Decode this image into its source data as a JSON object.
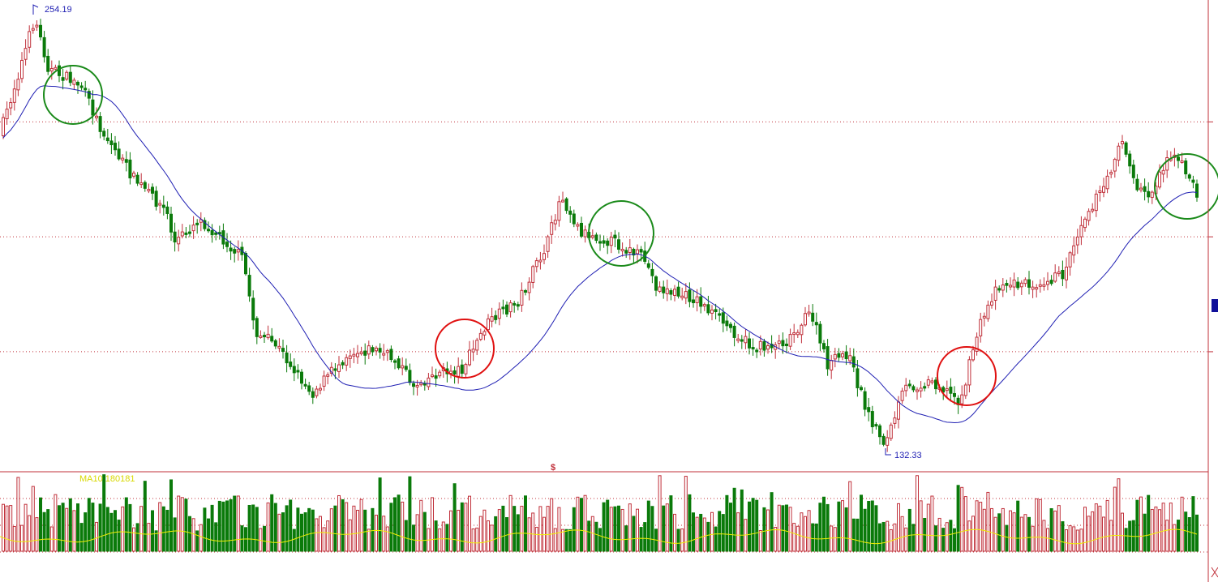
{
  "chart_data": {
    "type": "candlestick",
    "price_panel": {
      "high_marker": "254.19",
      "low_marker": "132.33",
      "ylim": [
        127,
        262
      ],
      "gridlines": [
        227,
        194,
        161
      ],
      "moving_average_color": "#1f1fb3",
      "up_color": "#c0303a",
      "down_color": "#0a7a0a"
    },
    "volume_panel": {
      "indicator_label": "MA10  180181",
      "ma_color": "#f0f000",
      "up_color": "#c0303a",
      "down_color": "#0a7a0a"
    },
    "divider_marker": "$",
    "annotations": [
      {
        "kind": "sell-circle",
        "color": "#1a8a1a"
      },
      {
        "kind": "buy-circle",
        "color": "#e01010"
      },
      {
        "kind": "sell-circle",
        "color": "#1a8a1a"
      },
      {
        "kind": "buy-circle",
        "color": "#e01010"
      },
      {
        "kind": "sell-circle",
        "color": "#1a8a1a"
      }
    ]
  }
}
